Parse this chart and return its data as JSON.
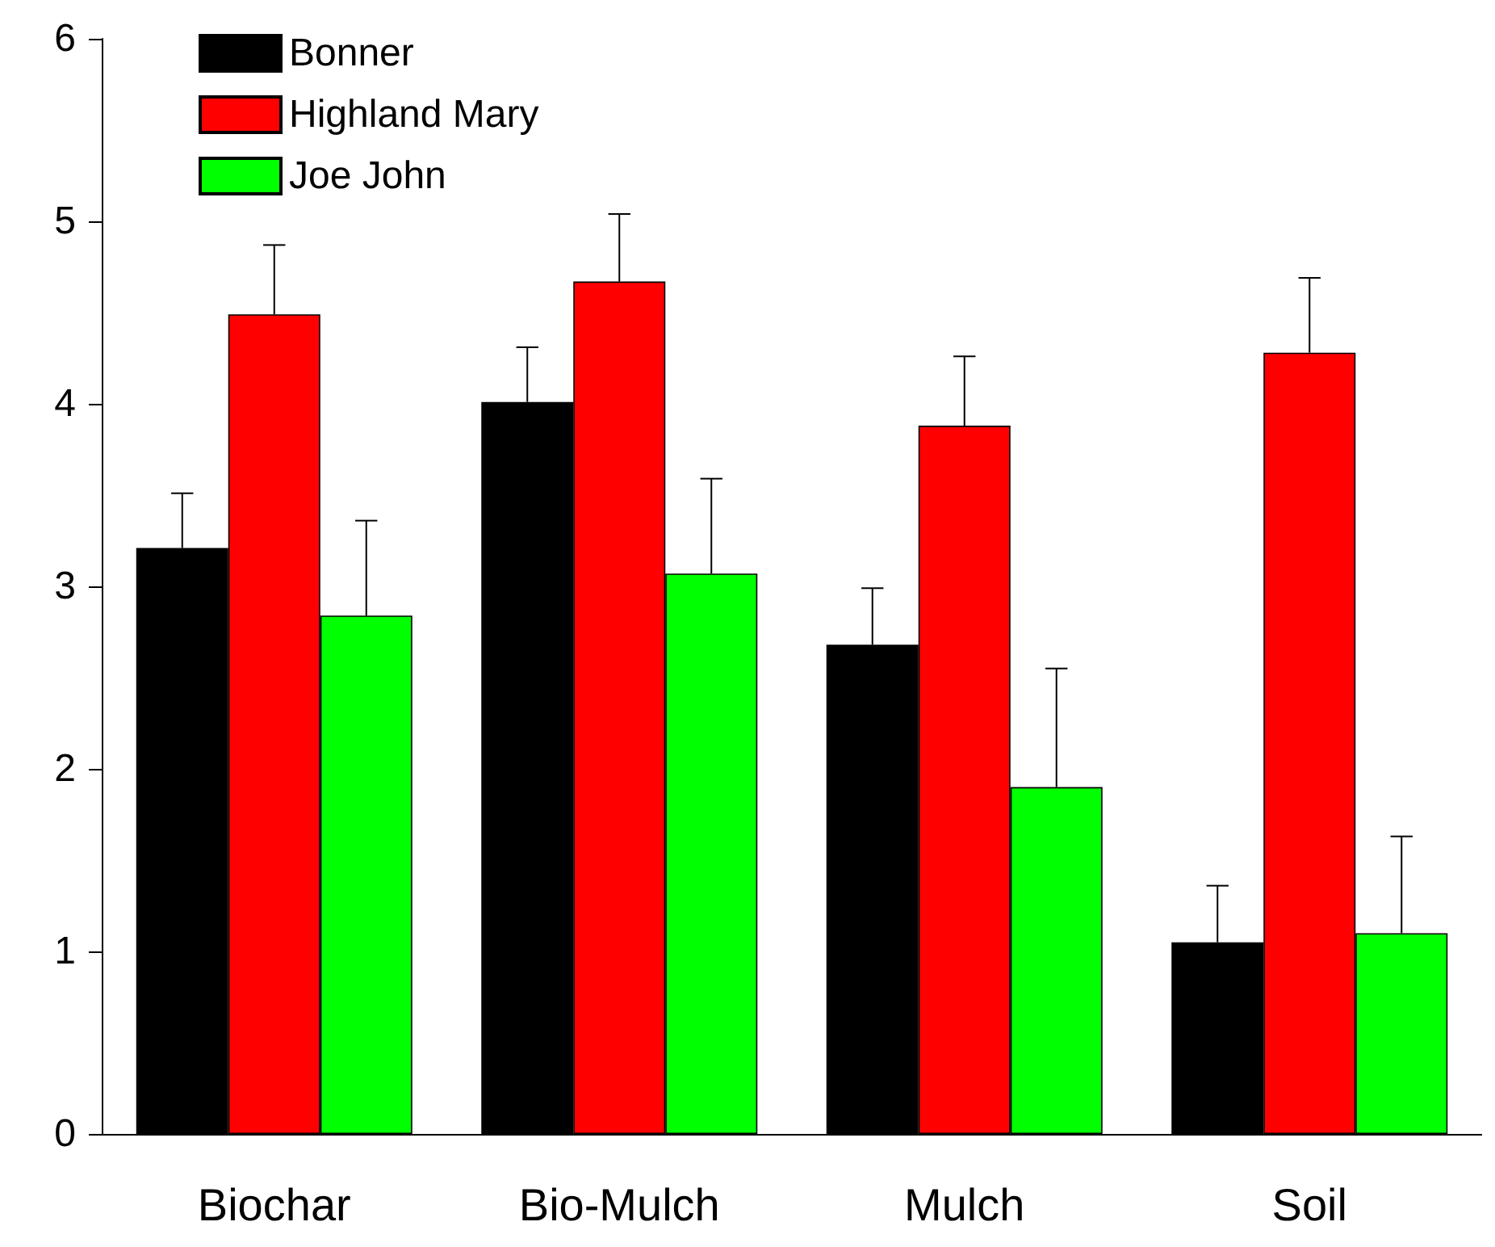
{
  "chart_data": {
    "type": "bar",
    "categories": [
      "Biochar",
      "Bio-Mulch",
      "Mulch",
      "Soil"
    ],
    "series": [
      {
        "name": "Bonner",
        "color": "#000000",
        "values": [
          3.21,
          4.01,
          2.68,
          1.05
        ],
        "errors": [
          [
            3.21,
            3.51
          ],
          [
            4.01,
            4.31
          ],
          [
            2.68,
            2.99
          ],
          [
            1.05,
            1.36
          ]
        ]
      },
      {
        "name": "Highland Mary",
        "color": "#ff0000",
        "values": [
          4.49,
          4.67,
          3.88,
          4.28
        ],
        "errors": [
          [
            4.49,
            4.87
          ],
          [
            4.67,
            5.04
          ],
          [
            3.88,
            4.26
          ],
          [
            4.28,
            4.69
          ]
        ]
      },
      {
        "name": "Joe John",
        "color": "#00ff00",
        "values": [
          2.84,
          3.07,
          1.9,
          1.1
        ],
        "errors": [
          [
            2.84,
            3.36
          ],
          [
            3.07,
            3.59
          ],
          [
            1.9,
            2.55
          ],
          [
            1.1,
            1.63
          ]
        ]
      }
    ],
    "ylim": [
      0,
      6
    ],
    "yticks": [
      0,
      1,
      2,
      3,
      4,
      5,
      6
    ],
    "grid": false,
    "legend": "top left"
  }
}
